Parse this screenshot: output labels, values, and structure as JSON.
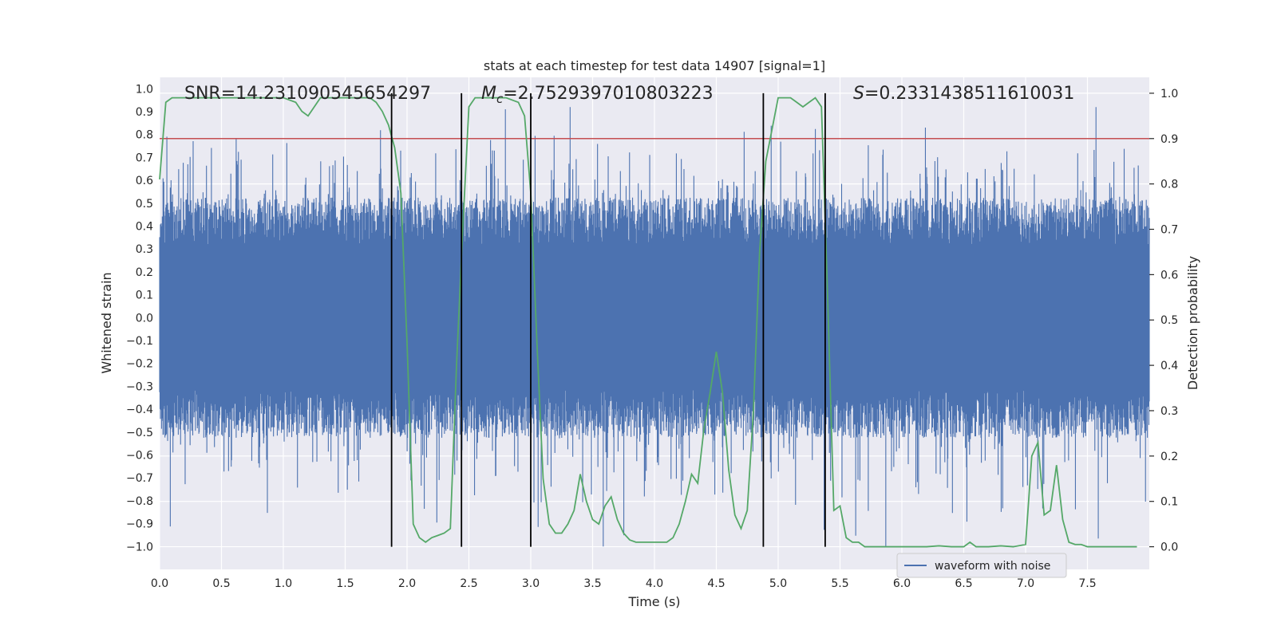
{
  "chart_data": {
    "type": "line",
    "title": "stats at each timestep for test data 14907 [signal=1]",
    "xlabel": "Time (s)",
    "ylabel_left": "Whitened strain",
    "ylabel_right": "Detection probability",
    "xlim": [
      0,
      8
    ],
    "ylim_left": [
      -1.1,
      1.05
    ],
    "ylim_right": [
      -0.05,
      1.035
    ],
    "x_ticks": [
      0.0,
      0.5,
      1.0,
      1.5,
      2.0,
      2.5,
      3.0,
      3.5,
      4.0,
      4.5,
      5.0,
      5.5,
      6.0,
      6.5,
      7.0,
      7.5
    ],
    "x_tick_labels": [
      "0.0",
      "0.5",
      "1.0",
      "1.5",
      "2.0",
      "2.5",
      "3.0",
      "3.5",
      "4.0",
      "4.5",
      "5.0",
      "5.5",
      "6.0",
      "6.5",
      "7.0",
      "7.5"
    ],
    "y_left_ticks": [
      1.0,
      0.9,
      0.8,
      0.7,
      0.6,
      0.5,
      0.4,
      0.3,
      0.2,
      0.1,
      0.0,
      -0.1,
      -0.2,
      -0.3,
      -0.4,
      -0.5,
      -0.6,
      -0.7,
      -0.8,
      -0.9,
      -1.0
    ],
    "y_left_tick_labels": [
      "1.0",
      "0.9",
      "0.8",
      "0.7",
      "0.6",
      "0.5",
      "0.4",
      "0.3",
      "0.2",
      "0.1",
      "0.0",
      "−0.1",
      "−0.2",
      "−0.3",
      "−0.4",
      "−0.5",
      "−0.6",
      "−0.7",
      "−0.8",
      "−0.9",
      "−1.0"
    ],
    "y_right_ticks": [
      1.0,
      0.9,
      0.8,
      0.7,
      0.6,
      0.5,
      0.4,
      0.3,
      0.2,
      0.1,
      0.0
    ],
    "y_right_tick_labels": [
      "1.0",
      "0.9",
      "0.8",
      "0.7",
      "0.6",
      "0.5",
      "0.4",
      "0.3",
      "0.2",
      "0.1",
      "0.0"
    ],
    "annotations": {
      "snr": "SNR=14.231090545654297",
      "mc_symbol": "M",
      "mc_subscript": "c",
      "mc_value": "=2.7529397010803223",
      "s_symbol": "S",
      "s_value": "=0.2331438511610031"
    },
    "threshold": {
      "value": 0.9,
      "axis": "right",
      "color": "#c44e52"
    },
    "vertical_lines": [
      1.875,
      2.44,
      3.0,
      4.88,
      5.38
    ],
    "series": [
      {
        "name": "waveform with noise",
        "axis": "left",
        "color": "#4c72b0",
        "description": "dense whitened noise strain, roughly uniform amplitude",
        "typical_amplitude": 0.42,
        "max_peak": 0.92,
        "min_peak": -1.0
      },
      {
        "axis": "right",
        "color": "#55a868",
        "x": [
          0.0,
          0.05,
          0.1,
          0.2,
          0.3,
          0.4,
          0.5,
          0.6,
          0.7,
          0.8,
          0.9,
          1.0,
          1.1,
          1.15,
          1.2,
          1.25,
          1.3,
          1.4,
          1.5,
          1.6,
          1.7,
          1.75,
          1.8,
          1.85,
          1.9,
          1.95,
          2.0,
          2.05,
          2.1,
          2.15,
          2.2,
          2.25,
          2.3,
          2.35,
          2.4,
          2.45,
          2.5,
          2.55,
          2.6,
          2.7,
          2.8,
          2.9,
          2.95,
          3.0,
          3.05,
          3.1,
          3.15,
          3.2,
          3.25,
          3.3,
          3.35,
          3.4,
          3.45,
          3.5,
          3.55,
          3.6,
          3.65,
          3.7,
          3.75,
          3.8,
          3.85,
          3.9,
          4.0,
          4.1,
          4.15,
          4.2,
          4.25,
          4.3,
          4.35,
          4.4,
          4.45,
          4.5,
          4.55,
          4.6,
          4.65,
          4.7,
          4.75,
          4.8,
          4.85,
          4.9,
          4.95,
          5.0,
          5.05,
          5.1,
          5.15,
          5.2,
          5.25,
          5.3,
          5.35,
          5.4,
          5.45,
          5.5,
          5.55,
          5.6,
          5.65,
          5.7,
          5.8,
          5.9,
          6.0,
          6.1,
          6.2,
          6.3,
          6.4,
          6.5,
          6.55,
          6.6,
          6.7,
          6.8,
          6.9,
          7.0,
          7.05,
          7.1,
          7.15,
          7.2,
          7.25,
          7.3,
          7.35,
          7.4,
          7.45,
          7.5,
          7.6,
          7.7,
          7.8,
          7.9
        ],
        "values": [
          0.81,
          0.98,
          0.99,
          0.99,
          0.99,
          0.99,
          0.99,
          0.99,
          0.99,
          0.99,
          0.99,
          0.99,
          0.98,
          0.96,
          0.95,
          0.97,
          0.99,
          0.99,
          0.99,
          0.99,
          0.99,
          0.98,
          0.96,
          0.93,
          0.88,
          0.78,
          0.45,
          0.05,
          0.02,
          0.01,
          0.02,
          0.025,
          0.03,
          0.04,
          0.4,
          0.7,
          0.97,
          0.99,
          0.99,
          0.99,
          0.99,
          0.98,
          0.95,
          0.78,
          0.45,
          0.15,
          0.05,
          0.03,
          0.03,
          0.05,
          0.08,
          0.16,
          0.1,
          0.06,
          0.05,
          0.09,
          0.11,
          0.06,
          0.03,
          0.015,
          0.01,
          0.01,
          0.01,
          0.01,
          0.02,
          0.05,
          0.1,
          0.16,
          0.14,
          0.26,
          0.34,
          0.43,
          0.34,
          0.17,
          0.07,
          0.04,
          0.08,
          0.3,
          0.65,
          0.85,
          0.92,
          0.99,
          0.99,
          0.99,
          0.98,
          0.97,
          0.98,
          0.99,
          0.97,
          0.55,
          0.08,
          0.09,
          0.02,
          0.01,
          0.01,
          0.0,
          0.0,
          0.0,
          0.0,
          0.0,
          0.0,
          0.002,
          0.0,
          0.0,
          0.01,
          0.0,
          0.0,
          0.002,
          0.0,
          0.005,
          0.2,
          0.23,
          0.07,
          0.08,
          0.18,
          0.06,
          0.01,
          0.005,
          0.005,
          0.0,
          0.0,
          0.0,
          0.0,
          0.0
        ]
      }
    ],
    "legend": {
      "position": "lower-right",
      "entries": [
        "waveform with noise"
      ]
    }
  }
}
